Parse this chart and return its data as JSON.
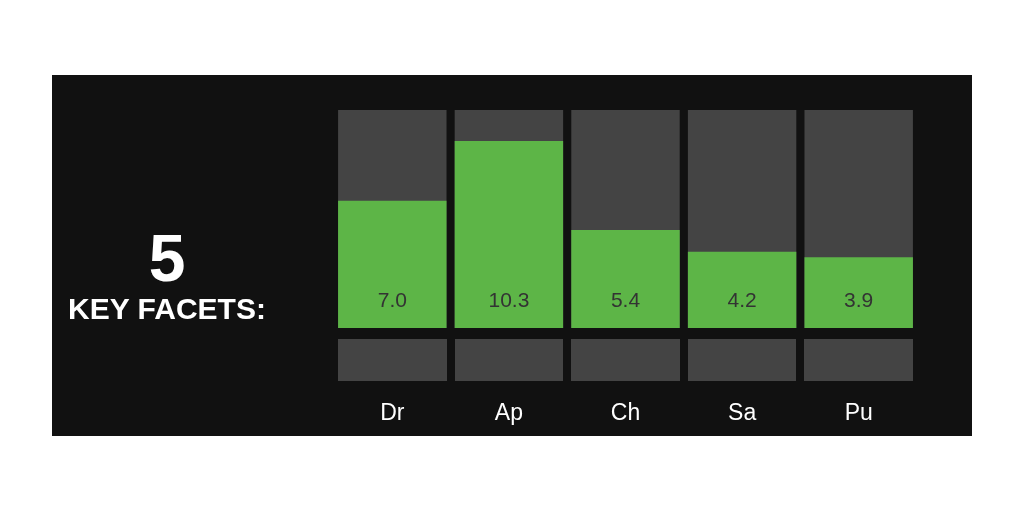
{
  "chart_data": {
    "type": "bar",
    "title": "5",
    "subtitle": "KEY FACETS:",
    "categories": [
      "Dr",
      "Ap",
      "Ch",
      "Sa",
      "Pu"
    ],
    "values": [
      7.0,
      10.3,
      5.4,
      4.2,
      3.9
    ],
    "color": "#5db547",
    "value_labels": [
      "7.0",
      "10.3",
      "5.4",
      "4.2",
      "3.9"
    ],
    "grid": false
  }
}
